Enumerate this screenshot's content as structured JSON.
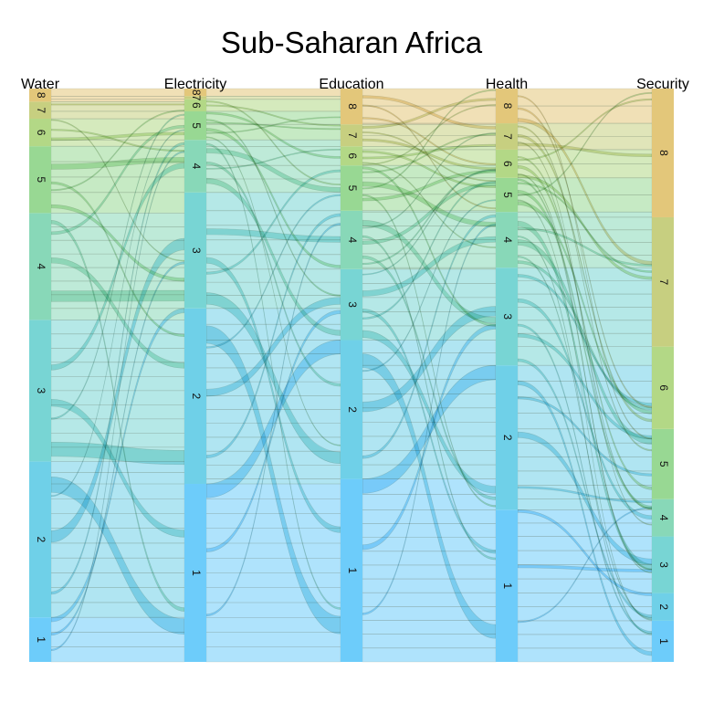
{
  "chart_data": {
    "type": "alluvial",
    "title": "Sub-Saharan Africa",
    "axes": [
      "Water",
      "Electricity",
      "Education",
      "Health",
      "Security"
    ],
    "levels": [
      "1",
      "2",
      "3",
      "4",
      "5",
      "6",
      "7",
      "8"
    ],
    "strata": {
      "Water": [
        0.068,
        0.238,
        0.216,
        0.163,
        0.102,
        0.042,
        0.026,
        0.02
      ],
      "Electricity": [
        0.281,
        0.277,
        0.183,
        0.083,
        0.045,
        0.019,
        0.005,
        0.012
      ],
      "Education": [
        0.307,
        0.233,
        0.119,
        0.098,
        0.076,
        0.032,
        0.037,
        0.06
      ],
      "Health": [
        0.254,
        0.241,
        0.163,
        0.093,
        0.057,
        0.047,
        0.044,
        0.058
      ],
      "Security": [
        0.064,
        0.043,
        0.088,
        0.058,
        0.109,
        0.128,
        0.201,
        0.2
      ]
    },
    "colors": {
      "1": "#6dccfa",
      "2": "#6fd0e8",
      "3": "#78d5d4",
      "4": "#88d8b8",
      "5": "#98d893",
      "6": "#b3d886",
      "7": "#c7cf80",
      "8": "#e3c77a"
    },
    "flow_color_reference": "#f2a07b",
    "legend": "none",
    "grid": false
  }
}
